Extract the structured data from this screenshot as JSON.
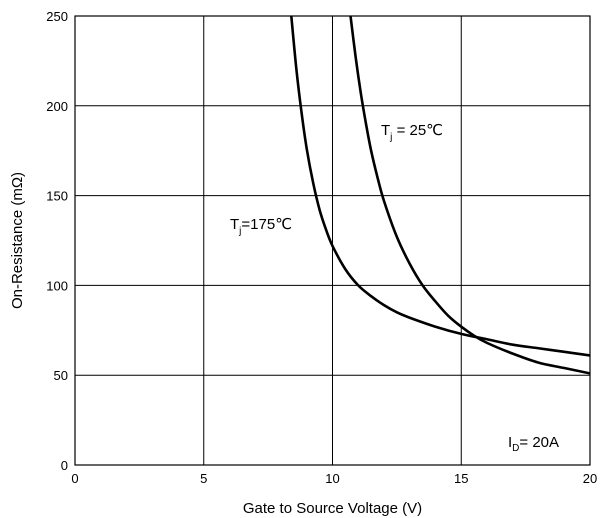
{
  "chart_data": {
    "type": "line",
    "xlabel": "Gate to Source Voltage (V)",
    "ylabel": "On-Resistance (mΩ)",
    "xlim": [
      0,
      20
    ],
    "ylim": [
      0,
      250
    ],
    "x_ticks": [
      0,
      5,
      10,
      15,
      20
    ],
    "y_ticks": [
      0,
      50,
      100,
      150,
      200,
      250
    ],
    "grid": true,
    "series": [
      {
        "label_main": "T",
        "label_sub": "j",
        "label_rest": "=175℃",
        "x": [
          8.4,
          8.6,
          8.8,
          9.0,
          9.25,
          9.5,
          9.75,
          10.0,
          10.5,
          11.0,
          11.5,
          12.0,
          12.5,
          13.0,
          14.0,
          15.0,
          16.0,
          17.0,
          18.0,
          19.0,
          20.0
        ],
        "y": [
          250,
          220,
          196,
          176,
          157,
          142,
          131,
          122,
          109,
          100,
          94,
          89,
          85,
          82,
          77,
          73,
          70,
          67,
          65,
          63,
          61
        ]
      },
      {
        "label_main": "T",
        "label_sub": "j",
        "label_rest": " = 25℃",
        "x": [
          10.7,
          10.9,
          11.1,
          11.3,
          11.5,
          11.75,
          12.0,
          12.5,
          13.0,
          13.5,
          14.0,
          14.5,
          15.0,
          15.5,
          16.0,
          17.0,
          18.0,
          19.0,
          20.0
        ],
        "y": [
          250,
          227,
          207,
          190,
          175,
          160,
          147,
          127,
          112,
          100,
          91,
          83,
          77,
          72,
          68,
          62,
          57,
          54,
          51
        ]
      }
    ],
    "annotation": {
      "main": "I",
      "sub": "D",
      "rest": "= 20A"
    }
  }
}
